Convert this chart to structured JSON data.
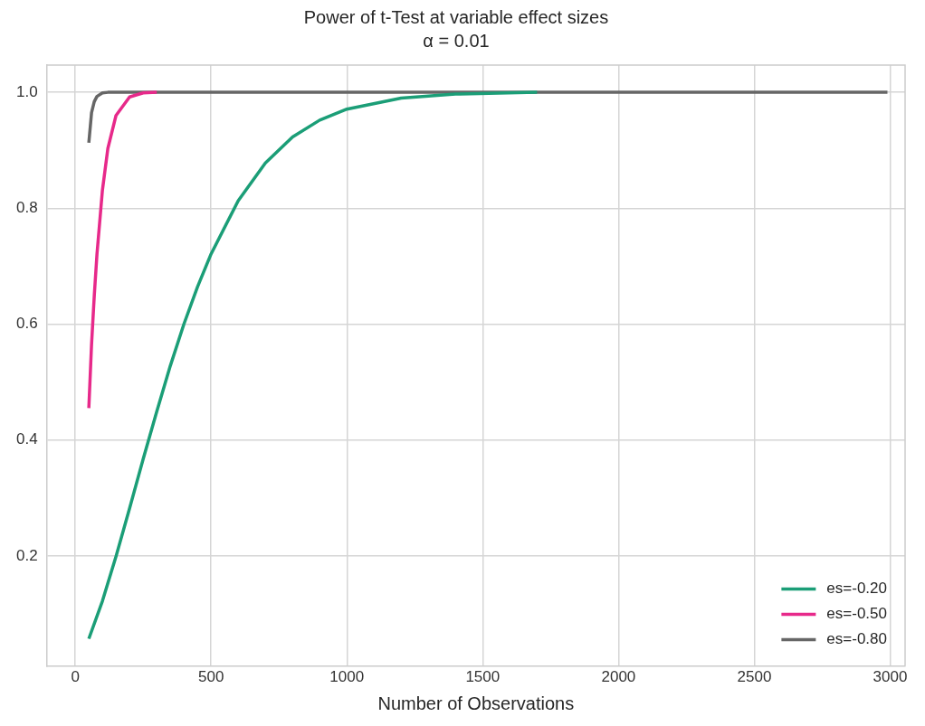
{
  "chart_data": {
    "type": "line",
    "title": "Power of t-Test at variable effect sizes",
    "subtitle": "α = 0.01",
    "xlabel": "Number of Observations",
    "series": [
      {
        "name": "es=-0.20",
        "color": "#1b9e77",
        "x": [
          50,
          100,
          150,
          200,
          250,
          300,
          350,
          400,
          450,
          500,
          600,
          700,
          800,
          900,
          1000,
          1200,
          1400,
          1700
        ],
        "values": [
          0.057,
          0.122,
          0.199,
          0.282,
          0.367,
          0.449,
          0.528,
          0.6,
          0.664,
          0.721,
          0.813,
          0.878,
          0.923,
          0.952,
          0.971,
          0.99,
          0.997,
          1.0
        ]
      },
      {
        "name": "es=-0.50",
        "color": "#e7298a",
        "x": [
          50,
          60,
          70,
          80,
          100,
          120,
          150,
          200,
          250,
          300
        ],
        "values": [
          0.455,
          0.565,
          0.649,
          0.721,
          0.831,
          0.903,
          0.96,
          0.992,
          0.999,
          1.0
        ]
      },
      {
        "name": "es=-0.80",
        "color": "#666666",
        "x": [
          50,
          60,
          70,
          80,
          100,
          120,
          2990
        ],
        "values": [
          0.913,
          0.965,
          0.984,
          0.993,
          0.999,
          1.0,
          1.0
        ]
      }
    ],
    "xlim": [
      -105,
      3055
    ],
    "ylim": [
      0.01,
      1.047
    ],
    "xticks": [
      0,
      500,
      1000,
      1500,
      2000,
      2500,
      3000
    ],
    "yticks": [
      0.2,
      0.4,
      0.6,
      0.8,
      {
        "value": 1,
        "label": "1.0"
      }
    ],
    "grid": true,
    "legend": "bottom right",
    "marker": "none",
    "line_style": "solid"
  }
}
